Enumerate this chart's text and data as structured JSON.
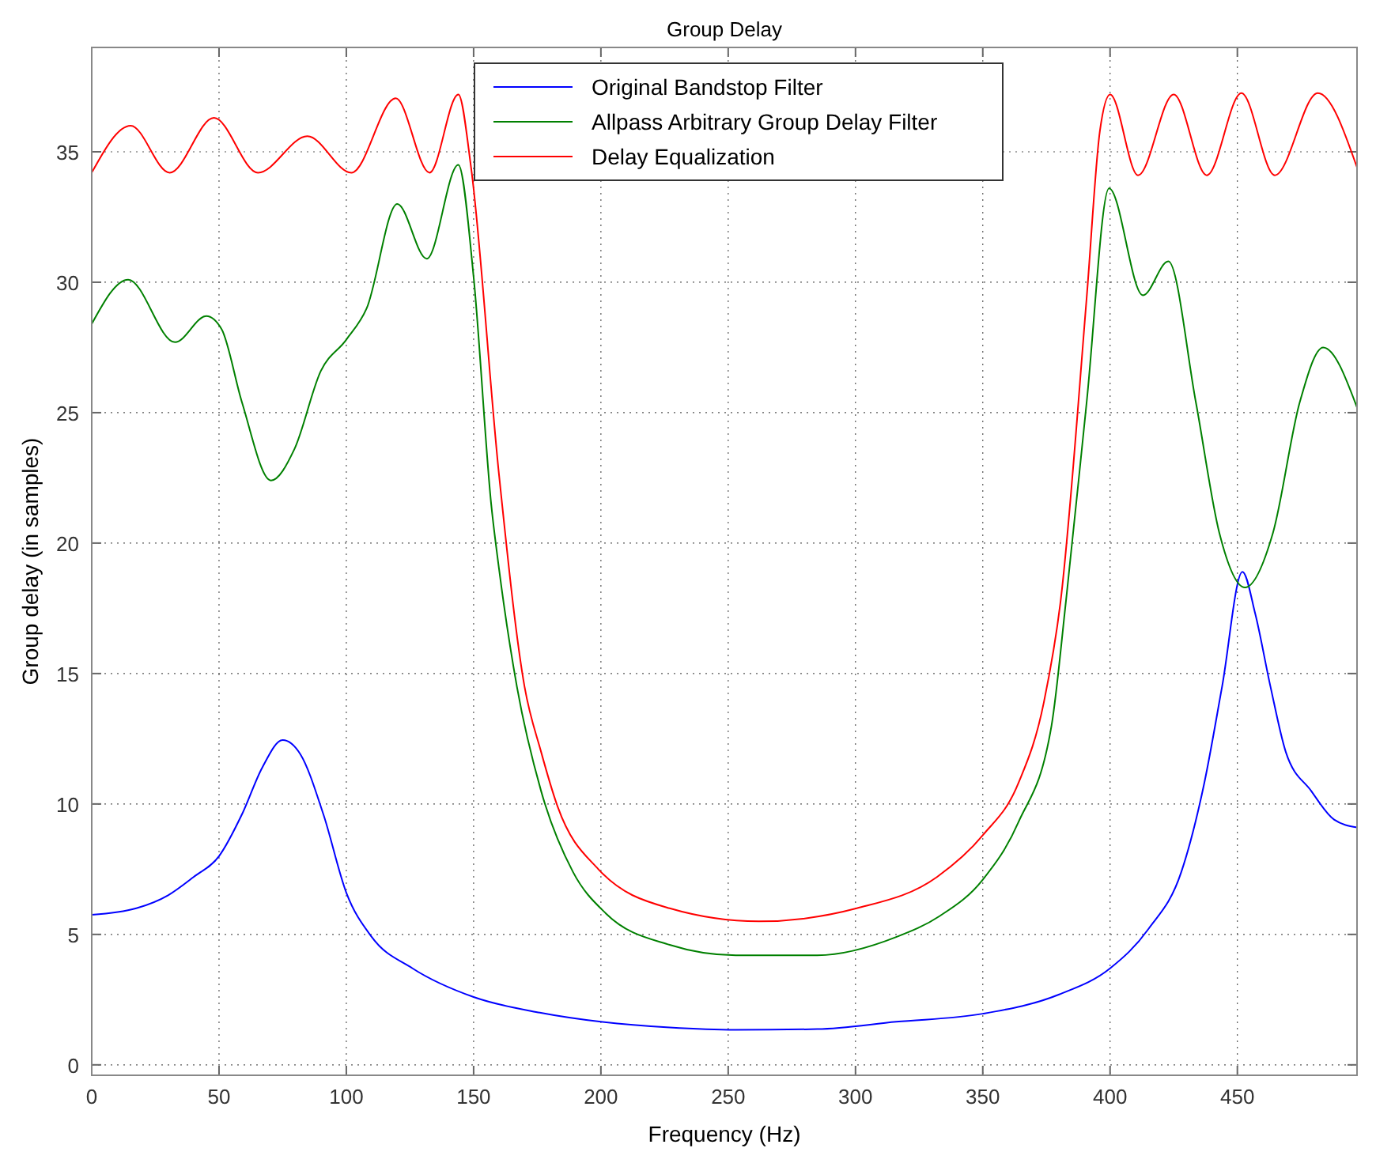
{
  "chart_data": {
    "type": "line",
    "title": "Group Delay",
    "xlabel": "Frequency (Hz)",
    "ylabel": "Group delay (in samples)",
    "xlim": [
      0,
      497
    ],
    "ylim": [
      -0.4,
      39
    ],
    "xticks": [
      0,
      50,
      100,
      150,
      200,
      250,
      300,
      350,
      400,
      450
    ],
    "yticks": [
      0,
      5,
      10,
      15,
      20,
      25,
      30,
      35
    ],
    "grid": true,
    "legend": "top",
    "series": [
      {
        "name": "Original Bandstop Filter",
        "color": "#0000ff",
        "x": [
          0,
          17.5,
          30,
          40,
          50,
          59,
          67,
          75,
          82,
          91,
          100,
          110,
          126,
          150,
          176,
          200,
          227,
          253,
          285,
          316,
          350,
          380,
          400,
          415,
          428,
          437,
          444,
          452,
          457,
          463,
          469,
          479,
          488,
          497
        ],
        "values": [
          5.75,
          6.0,
          6.5,
          7.2,
          8.0,
          9.6,
          11.4,
          12.45,
          11.9,
          9.6,
          6.6,
          4.9,
          3.7,
          2.6,
          2.0,
          1.65,
          1.43,
          1.34,
          1.37,
          1.65,
          1.96,
          2.7,
          3.7,
          5.2,
          7.4,
          10.8,
          14.5,
          18.9,
          17.3,
          14.5,
          12.0,
          10.5,
          9.4,
          9.1
        ]
      },
      {
        "name": "Allpass Arbitrary Group Delay Filter",
        "color": "#008000",
        "x": [
          0,
          14.3,
          32.7,
          45,
          51,
          59,
          70.4,
          79.6,
          90,
          100,
          108,
          120,
          131.6,
          144,
          150,
          157,
          160,
          167,
          176.5,
          189,
          202,
          227,
          253,
          285,
          316,
          333,
          350,
          364,
          377,
          382.7,
          390.8,
          399.6,
          412.9,
          422.9,
          433.7,
          442.9,
          453,
          464,
          474.5,
          483.7,
          497
        ],
        "values": [
          28.4,
          30.1,
          27.7,
          28.7,
          28.2,
          25.4,
          22.4,
          23.6,
          26.6,
          27.8,
          29.0,
          33.0,
          30.9,
          34.5,
          30.2,
          21.4,
          19.0,
          14.5,
          10.5,
          7.4,
          5.8,
          4.6,
          4.2,
          4.2,
          4.9,
          5.7,
          7.1,
          9.3,
          13.0,
          17.8,
          25.4,
          33.6,
          29.5,
          30.8,
          25.4,
          20.4,
          18.3,
          20.4,
          25.4,
          27.5,
          25.2
        ]
      },
      {
        "name": "Delay Equalization",
        "color": "#ff0000",
        "x": [
          0,
          15.3,
          30.6,
          48,
          65.3,
          84.7,
          102,
          119.4,
          132.7,
          144,
          149,
          160,
          170,
          176.5,
          183,
          199,
          227,
          262,
          300.5,
          332,
          350,
          364,
          374,
          380.6,
          390.8,
          396,
          400,
          411,
          425,
          438,
          451.6,
          464.7,
          481.6,
          497
        ],
        "values": [
          34.2,
          36.0,
          34.2,
          36.3,
          34.2,
          35.6,
          34.2,
          37.05,
          34.2,
          37.2,
          34.4,
          22.6,
          14.5,
          12.0,
          9.9,
          7.5,
          6.0,
          5.5,
          6.0,
          7.2,
          8.8,
          10.8,
          13.9,
          17.8,
          29.4,
          35.8,
          37.2,
          34.1,
          37.2,
          34.1,
          37.25,
          34.1,
          37.25,
          34.4
        ]
      }
    ]
  }
}
